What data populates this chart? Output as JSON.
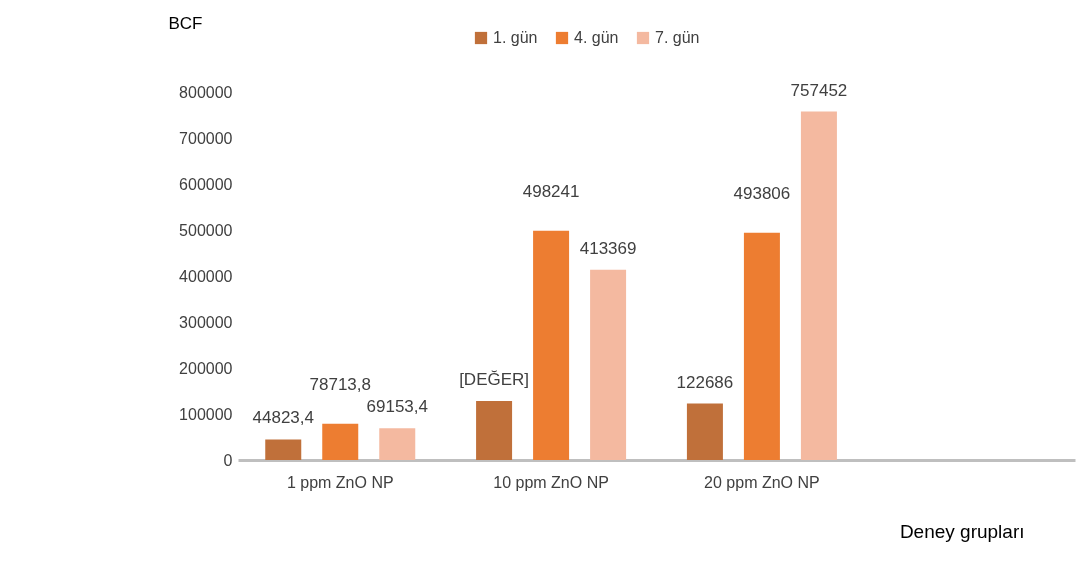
{
  "chart_data": {
    "type": "bar",
    "xlabel": "Deney grupları",
    "ylabel": "BCF",
    "categories": [
      "1 ppm ZnO NP",
      "10 ppm ZnO NP",
      "20 ppm ZnO NP",
      null
    ],
    "series": [
      {
        "name": "1. gün",
        "color": "#c0703a",
        "values": [
          44823.4,
          128000,
          122686,
          null
        ],
        "value_labels": [
          "44823,4",
          "[DEĞER]",
          "122686",
          null
        ]
      },
      {
        "name": "4. gün",
        "color": "#ed7d31",
        "values": [
          78713.8,
          498241,
          493806,
          null
        ],
        "value_labels": [
          "78713,8",
          "498241",
          "493806",
          null
        ]
      },
      {
        "name": "7. gün",
        "color": "#f4b9a0",
        "values": [
          69153.4,
          413369,
          757452,
          null
        ],
        "value_labels": [
          "69153,4",
          "413369",
          "757452",
          null
        ]
      }
    ],
    "ylim": [
      0,
      800000
    ],
    "yticks": [
      0,
      100000,
      200000,
      300000,
      400000,
      500000,
      600000,
      700000,
      800000
    ],
    "grid": false,
    "legend": "top"
  }
}
